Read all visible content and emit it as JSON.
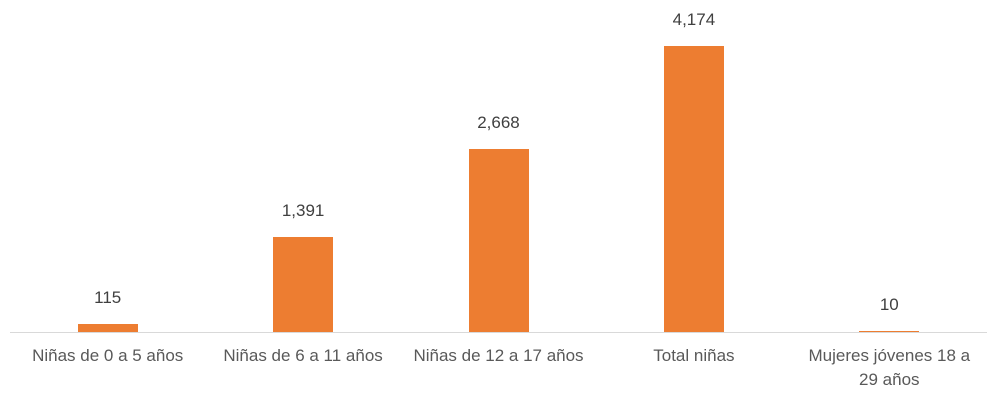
{
  "chart_data": {
    "type": "bar",
    "categories": [
      "Niñas de 0 a 5 años",
      "Niñas de 6 a 11 años",
      "Niñas de 12 a 17 años",
      "Total niñas",
      "Mujeres jóvenes 18 a 29 años"
    ],
    "values": [
      115,
      1391,
      2668,
      4174,
      10
    ],
    "value_labels": [
      "115",
      "1,391",
      "2,668",
      "4,174",
      "10"
    ],
    "color": "#ed7d31"
  }
}
